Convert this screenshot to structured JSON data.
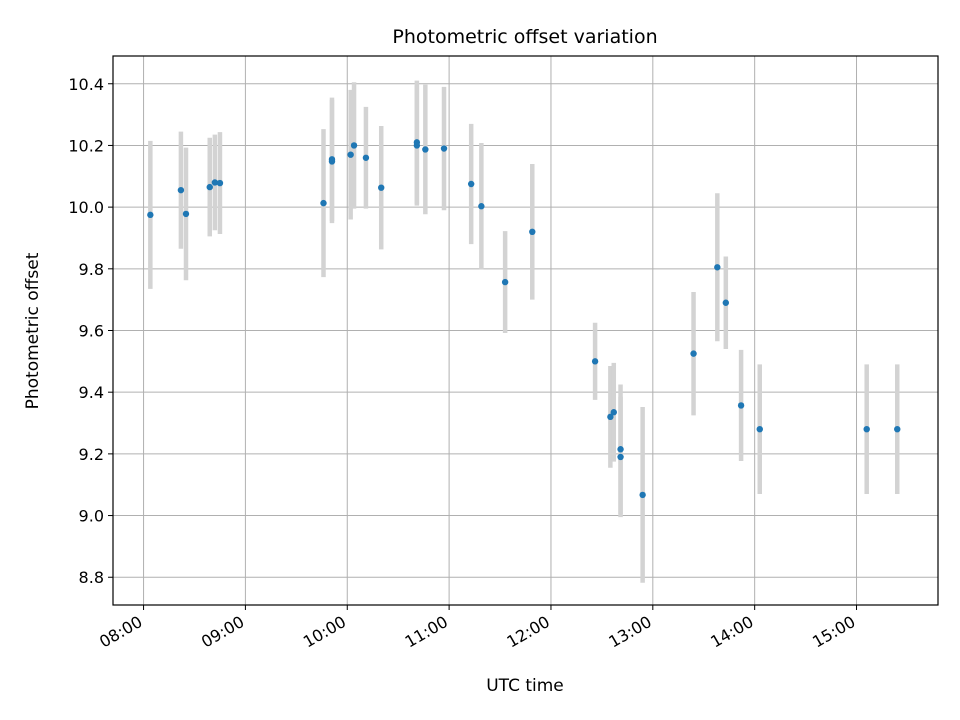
{
  "chart_data": {
    "type": "scatter",
    "title": "Photometric offset variation",
    "xlabel": "UTC time",
    "ylabel": "Photometric offset",
    "xlim": [
      "07:42",
      "15:48"
    ],
    "ylim": [
      8.71,
      10.49
    ],
    "grid": true,
    "x_ticks": [
      "08:00",
      "09:00",
      "10:00",
      "11:00",
      "12:00",
      "13:00",
      "14:00",
      "15:00"
    ],
    "y_ticks": [
      "8.8",
      "9.0",
      "9.2",
      "9.4",
      "9.6",
      "9.8",
      "10.0",
      "10.2",
      "10.4"
    ],
    "colors": {
      "point": "#1f77b4",
      "error_bar": "#d3d3d3",
      "grid": "#b0b0b0"
    },
    "series": [
      {
        "points": [
          {
            "t": "08:04",
            "y": 9.975,
            "err": 0.24
          },
          {
            "t": "08:22",
            "y": 10.055,
            "err": 0.19
          },
          {
            "t": "08:25",
            "y": 9.978,
            "err": 0.215
          },
          {
            "t": "08:39",
            "y": 10.065,
            "err": 0.16
          },
          {
            "t": "08:42",
            "y": 10.08,
            "err": 0.155
          },
          {
            "t": "08:45",
            "y": 10.078,
            "err": 0.165
          },
          {
            "t": "09:46",
            "y": 10.013,
            "err": 0.24
          },
          {
            "t": "09:51",
            "y": 10.155,
            "err": 0.2
          },
          {
            "t": "09:51",
            "y": 10.148,
            "err": 0.2
          },
          {
            "t": "10:02",
            "y": 10.17,
            "err": 0.21
          },
          {
            "t": "10:04",
            "y": 10.2,
            "err": 0.205
          },
          {
            "t": "10:11",
            "y": 10.16,
            "err": 0.165
          },
          {
            "t": "10:20",
            "y": 10.063,
            "err": 0.2
          },
          {
            "t": "10:41",
            "y": 10.21,
            "err": 0.2
          },
          {
            "t": "10:41",
            "y": 10.2,
            "err": 0.195
          },
          {
            "t": "10:46",
            "y": 10.187,
            "err": 0.21
          },
          {
            "t": "10:57",
            "y": 10.19,
            "err": 0.2
          },
          {
            "t": "11:13",
            "y": 10.075,
            "err": 0.195
          },
          {
            "t": "11:19",
            "y": 10.003,
            "err": 0.205
          },
          {
            "t": "11:33",
            "y": 9.757,
            "err": 0.165
          },
          {
            "t": "11:49",
            "y": 9.92,
            "err": 0.22
          },
          {
            "t": "12:26",
            "y": 9.5,
            "err": 0.125
          },
          {
            "t": "12:35",
            "y": 9.32,
            "err": 0.165
          },
          {
            "t": "12:37",
            "y": 9.335,
            "err": 0.16
          },
          {
            "t": "12:41",
            "y": 9.215,
            "err": 0.21
          },
          {
            "t": "12:41",
            "y": 9.19,
            "err": 0.195
          },
          {
            "t": "12:54",
            "y": 9.067,
            "err": 0.285
          },
          {
            "t": "13:24",
            "y": 9.525,
            "err": 0.2
          },
          {
            "t": "13:38",
            "y": 9.805,
            "err": 0.24
          },
          {
            "t": "13:43",
            "y": 9.69,
            "err": 0.15
          },
          {
            "t": "13:52",
            "y": 9.357,
            "err": 0.18
          },
          {
            "t": "14:03",
            "y": 9.28,
            "err": 0.21
          },
          {
            "t": "15:06",
            "y": 9.28,
            "err": 0.21
          },
          {
            "t": "15:24",
            "y": 9.28,
            "err": 0.21
          }
        ]
      }
    ]
  }
}
